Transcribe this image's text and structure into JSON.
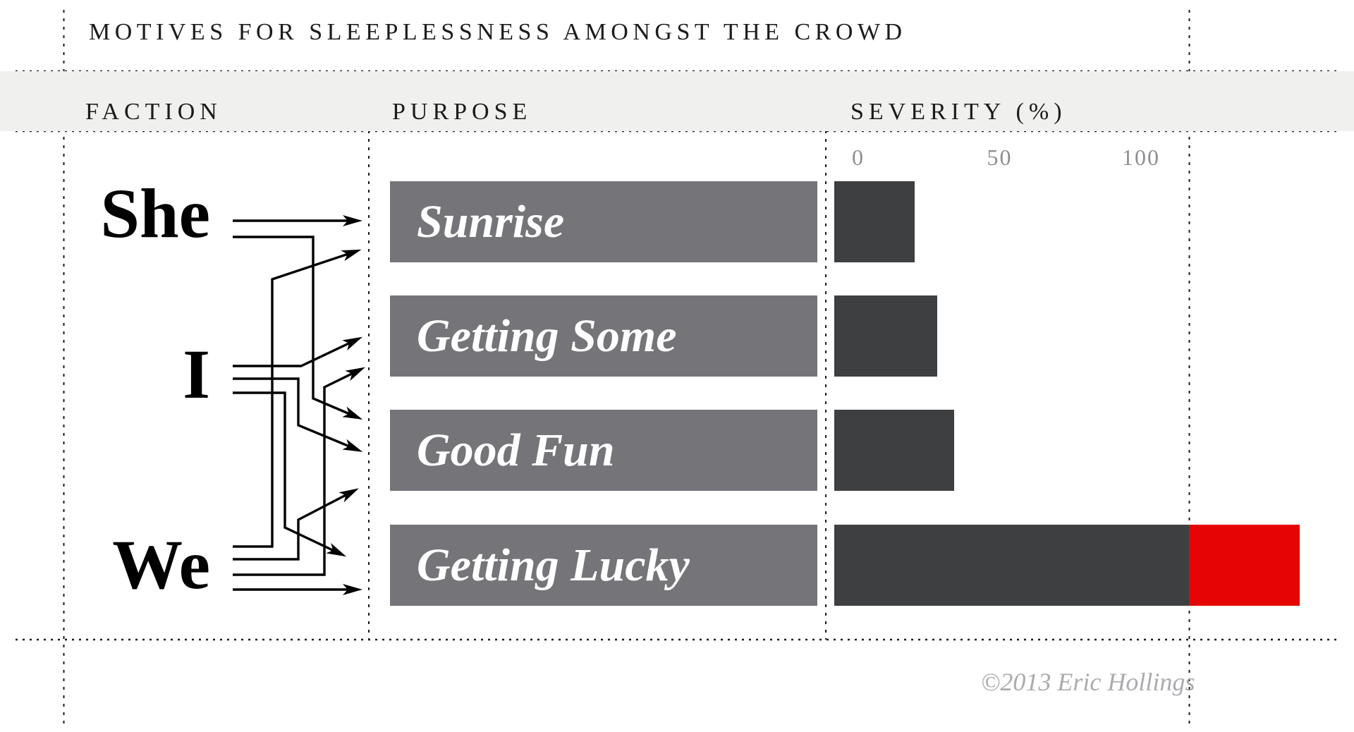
{
  "title": "MOTIVES FOR SLEEPLESSNESS AMONGST THE CROWD",
  "columns": {
    "faction": "FACTION",
    "purpose": "PURPOSE",
    "severity": "SEVERITY (%)"
  },
  "factions": [
    {
      "id": "she",
      "label": "She"
    },
    {
      "id": "i",
      "label": "I"
    },
    {
      "id": "we",
      "label": "We"
    }
  ],
  "purposes": [
    {
      "id": "sunrise",
      "label": "Sunrise"
    },
    {
      "id": "getting_some",
      "label": "Getting Some"
    },
    {
      "id": "good_fun",
      "label": "Good Fun"
    },
    {
      "id": "getting_lucky",
      "label": "Getting Lucky"
    }
  ],
  "connections": [
    {
      "from": "she",
      "to": "sunrise"
    },
    {
      "from": "she",
      "to": "good_fun"
    },
    {
      "from": "i",
      "to": "getting_some"
    },
    {
      "from": "i",
      "to": "good_fun"
    },
    {
      "from": "i",
      "to": "getting_lucky"
    },
    {
      "from": "we",
      "to": "sunrise"
    },
    {
      "from": "we",
      "to": "good_fun"
    },
    {
      "from": "we",
      "to": "getting_some"
    },
    {
      "from": "we",
      "to": "getting_lucky"
    }
  ],
  "chart_data": {
    "type": "bar",
    "orientation": "horizontal",
    "title": "MOTIVES FOR SLEEPLESSNESS AMONGST THE CROWD",
    "categories": [
      "Sunrise",
      "Getting Some",
      "Good Fun",
      "Getting Lucky"
    ],
    "values": [
      20,
      28,
      34,
      156
    ],
    "series_label": "SEVERITY (%)",
    "axis_ticks": [
      0,
      50,
      100
    ],
    "xlim": [
      0,
      100
    ],
    "grid": false,
    "overflow_color_switch_value": 117,
    "note": "Getting Lucky exceeds the 100% axis; the portion past the chart edge is drawn in red"
  },
  "footer": {
    "credit": "©2013 Eric Hollings"
  },
  "colors": {
    "ink": "#1b1b1b",
    "band": "#f0f0ef",
    "purpose_bar": "#757478",
    "severity_bar": "#3e3f41",
    "overflow_red": "#e60505",
    "axis_label": "#8e8d91",
    "credit": "#a9abae"
  }
}
